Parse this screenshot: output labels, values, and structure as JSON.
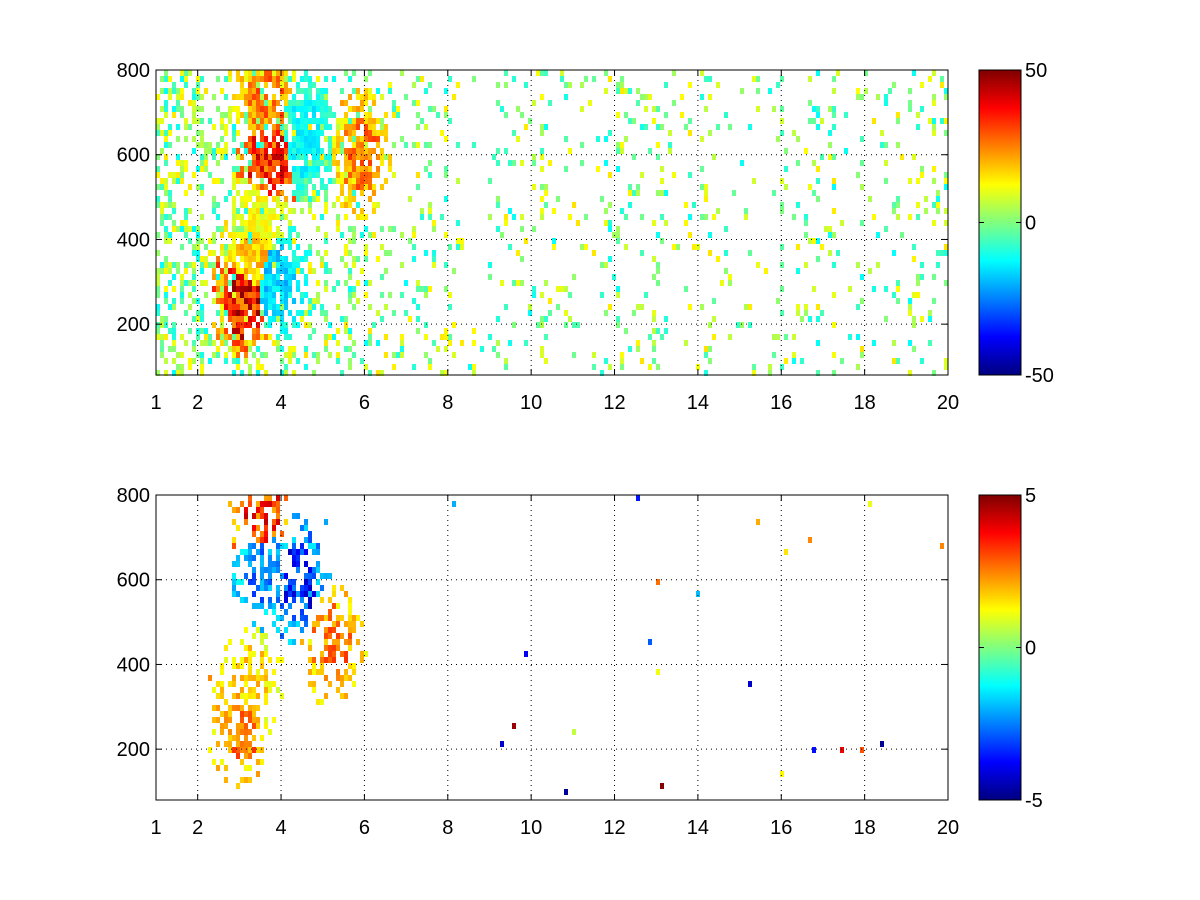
{
  "chart_data": [
    {
      "type": "heatmap",
      "title": "",
      "xlabel": "",
      "ylabel": "",
      "xlim": [
        1,
        20
      ],
      "ylim": [
        80,
        800
      ],
      "xticks": [
        1,
        2,
        4,
        6,
        8,
        10,
        12,
        14,
        16,
        18,
        20
      ],
      "xtick_labels": [
        "1",
        "2",
        "4",
        "6",
        "8",
        "10",
        "12",
        "14",
        "16",
        "18",
        "20"
      ],
      "yticks": [
        200,
        400,
        600,
        800
      ],
      "ytick_labels": [
        "200",
        "400",
        "600",
        "800"
      ],
      "grid": true,
      "colormap": "jet",
      "clim": [
        -50,
        50
      ],
      "colorbar_ticks": [
        50,
        0,
        -50
      ],
      "colorbar_labels": [
        "50",
        "0",
        "-50"
      ],
      "features": [
        {
          "x": 3.1,
          "y": 260,
          "value": 45
        },
        {
          "x": 3.3,
          "y": 350,
          "value": 22
        },
        {
          "x": 3.5,
          "y": 450,
          "value": 15
        },
        {
          "x": 3.7,
          "y": 580,
          "value": 40
        },
        {
          "x": 3.6,
          "y": 720,
          "value": 30
        },
        {
          "x": 4.6,
          "y": 640,
          "value": -15
        },
        {
          "x": 3.9,
          "y": 300,
          "value": -20
        },
        {
          "x": 5.9,
          "y": 600,
          "value": 30
        }
      ]
    },
    {
      "type": "heatmap",
      "title": "",
      "xlabel": "",
      "ylabel": "",
      "xlim": [
        1,
        20
      ],
      "ylim": [
        80,
        800
      ],
      "xticks": [
        1,
        2,
        4,
        6,
        8,
        10,
        12,
        14,
        16,
        18,
        20
      ],
      "xtick_labels": [
        "1",
        "2",
        "4",
        "6",
        "8",
        "10",
        "12",
        "14",
        "16",
        "18",
        "20"
      ],
      "yticks": [
        200,
        400,
        600,
        800
      ],
      "ytick_labels": [
        "200",
        "400",
        "600",
        "800"
      ],
      "grid": true,
      "colormap": "jet",
      "clim": [
        -5,
        5
      ],
      "colorbar_ticks": [
        5,
        0,
        -5
      ],
      "colorbar_labels": [
        "5",
        "0",
        "-5"
      ],
      "features": [
        {
          "x": 3.0,
          "y": 260,
          "value": 3
        },
        {
          "x": 3.3,
          "y": 350,
          "value": 2
        },
        {
          "x": 3.6,
          "y": 620,
          "value": -3
        },
        {
          "x": 3.5,
          "y": 760,
          "value": 4
        },
        {
          "x": 4.4,
          "y": 600,
          "value": -4
        },
        {
          "x": 5.2,
          "y": 450,
          "value": 3
        }
      ]
    }
  ]
}
